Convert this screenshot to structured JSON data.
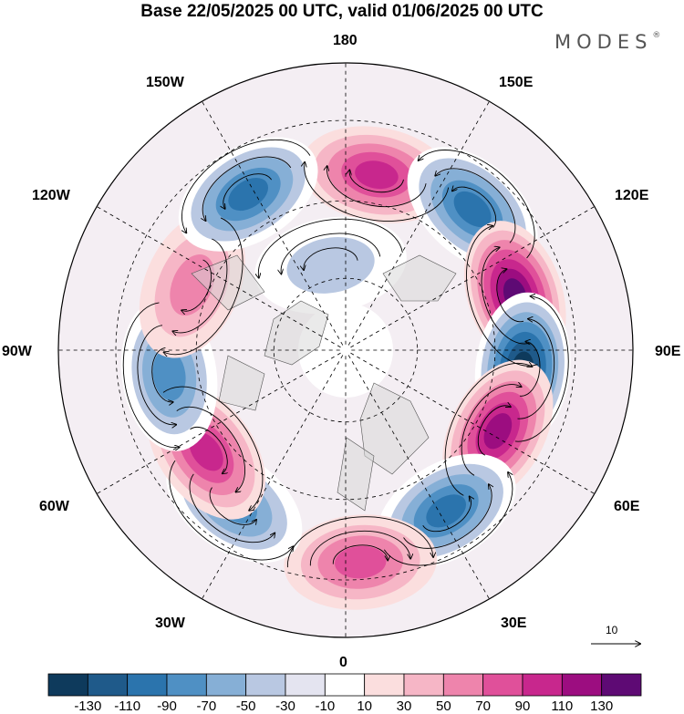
{
  "title": "Base 22/05/2025 00 UTC, valid 01/06/2025 00 UTC",
  "brand": "MODES",
  "brand_mark": "®",
  "longitude_labels": {
    "n180": "180",
    "w150": "150W",
    "e150": "150E",
    "w120": "120W",
    "e120": "120E",
    "w90": "90W",
    "e90": "90E",
    "w60": "60W",
    "e60": "60E",
    "w30": "30W",
    "e30": "30E",
    "s0": "0"
  },
  "reference_vector": "10",
  "colorbar": {
    "colors": [
      "#0e3a5c",
      "#1f5a8a",
      "#2b74ad",
      "#4f90c4",
      "#86afd6",
      "#b9c8e2",
      "#e4e4f0",
      "#ffffff",
      "#fbdede",
      "#f6b6c6",
      "#ee84ac",
      "#e0509a",
      "#c8278d",
      "#9c0d80",
      "#5e0a74"
    ],
    "ticks": [
      "-130",
      "-110",
      "-90",
      "-70",
      "-50",
      "-30",
      "-10",
      "10",
      "30",
      "50",
      "70",
      "90",
      "110",
      "130"
    ]
  },
  "anomaly_centers": [
    {
      "lon": 170,
      "r": 0.62,
      "value": 95
    },
    {
      "lon": 138,
      "r": 0.66,
      "value": -95
    },
    {
      "lon": 108,
      "r": 0.62,
      "value": 125
    },
    {
      "lon": 84,
      "r": 0.62,
      "value": -125
    },
    {
      "lon": 62,
      "r": 0.6,
      "value": 105
    },
    {
      "lon": 32,
      "r": 0.66,
      "value": -85
    },
    {
      "lon": 4,
      "r": 0.74,
      "value": 65
    },
    {
      "lon": -36,
      "r": 0.66,
      "value": -65
    },
    {
      "lon": -54,
      "r": 0.6,
      "value": 85
    },
    {
      "lon": -82,
      "r": 0.62,
      "value": -75
    },
    {
      "lon": -113,
      "r": 0.58,
      "value": 45
    },
    {
      "lon": -148,
      "r": 0.64,
      "value": -90
    },
    {
      "lon": -170,
      "r": 0.3,
      "value": -25
    }
  ]
}
